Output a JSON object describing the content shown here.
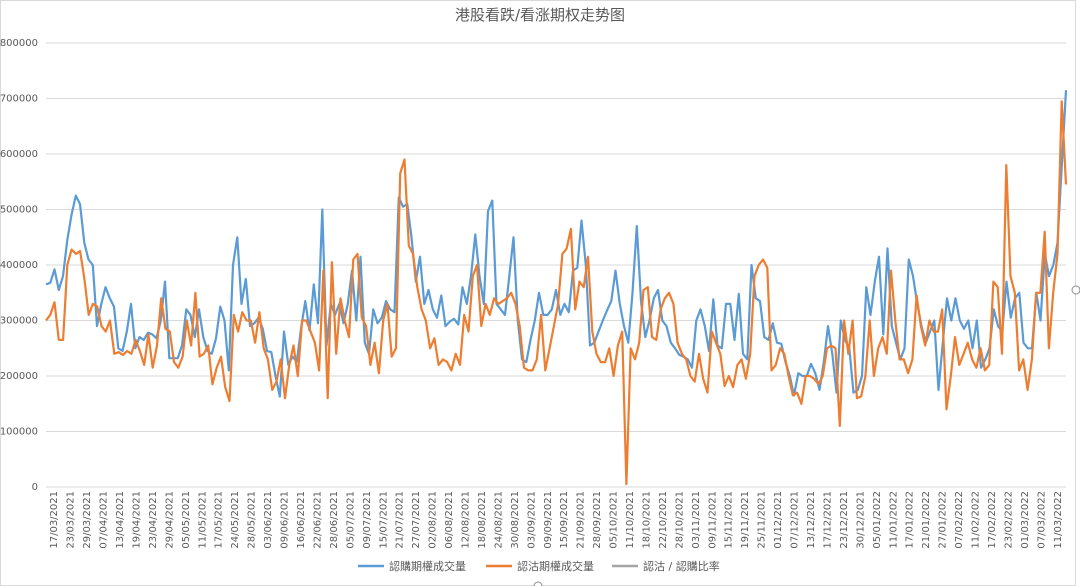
{
  "chart_data": {
    "type": "line",
    "title": "港股看跌/看涨期权走势图",
    "xlabel": "",
    "ylabel": "",
    "ylim": [
      0,
      800000
    ],
    "yticks": [
      "0",
      "100000",
      "200000",
      "300000",
      "400000",
      "500000",
      "600000",
      "700000",
      "800000"
    ],
    "grid": true,
    "legend_position": "bottom",
    "colors": {
      "series1": "#5b9bd5",
      "series2": "#ed7d31",
      "series3": "#a5a5a5"
    },
    "xtick_labels": [
      "17/03/2021",
      "23/03/2021",
      "29/03/2021",
      "07/04/2021",
      "13/04/2021",
      "19/04/2021",
      "23/04/2021",
      "29/04/2021",
      "05/05/2021",
      "11/05/2021",
      "17/05/2021",
      "24/05/2021",
      "28/05/2021",
      "03/06/2021",
      "09/06/2021",
      "16/06/2021",
      "22/06/2021",
      "28/06/2021",
      "05/07/2021",
      "09/07/2021",
      "15/07/2021",
      "21/07/2021",
      "27/07/2021",
      "02/08/2021",
      "06/08/2021",
      "12/08/2021",
      "18/08/2021",
      "24/08/2021",
      "30/08/2021",
      "03/09/2021",
      "09/09/2021",
      "15/09/2021",
      "21/09/2021",
      "28/09/2021",
      "05/10/2021",
      "11/10/2021",
      "18/10/2021",
      "22/10/2021",
      "28/10/2021",
      "03/11/2021",
      "09/11/2021",
      "15/11/2021",
      "19/11/2021",
      "25/11/2021",
      "01/12/2021",
      "07/12/2021",
      "13/12/2021",
      "17/12/2021",
      "23/12/2021",
      "30/12/2021",
      "05/01/2022",
      "11/01/2022",
      "17/01/2022",
      "21/01/2022",
      "27/01/2022",
      "07/02/2022",
      "11/02/2022",
      "17/02/2022",
      "23/02/2022",
      "01/03/2022",
      "07/03/2022",
      "11/03/2022"
    ],
    "series": [
      {
        "name": "認購期權成交量",
        "values": [
          365000,
          368000,
          392000,
          355000,
          380000,
          445000,
          490000,
          525000,
          510000,
          440000,
          410000,
          400000,
          290000,
          330000,
          360000,
          340000,
          325000,
          250000,
          245000,
          280000,
          330000,
          250000,
          270000,
          265000,
          278000,
          275000,
          268000,
          300000,
          370000,
          232000,
          232000,
          232000,
          255000,
          320000,
          310000,
          270000,
          320000,
          270000,
          245000,
          240000,
          268000,
          325000,
          300000,
          210000,
          400000,
          450000,
          330000,
          375000,
          290000,
          295000,
          305000,
          285000,
          245000,
          243000,
          200000,
          163000,
          280000,
          220000,
          235000,
          226000,
          285000,
          335000,
          282000,
          365000,
          295000,
          500000,
          255000,
          330000,
          310000,
          330000,
          295000,
          330000,
          390000,
          300000,
          415000,
          260000,
          240000,
          320000,
          295000,
          305000,
          335000,
          320000,
          315000,
          522000,
          505000,
          510000,
          450000,
          370000,
          415000,
          330000,
          355000,
          320000,
          305000,
          345000,
          290000,
          298000,
          303000,
          293000,
          360000,
          330000,
          380000,
          455000,
          380000,
          330000,
          497000,
          516000,
          330000,
          320000,
          310000,
          380000,
          450000,
          300000,
          230000,
          225000,
          265000,
          300000,
          350000,
          310000,
          310000,
          320000,
          355000,
          310000,
          330000,
          315000,
          390000,
          395000,
          480000,
          400000,
          255000,
          260000,
          280000,
          300000,
          318000,
          335000,
          390000,
          330000,
          290000,
          260000,
          350000,
          470000,
          335000,
          270000,
          300000,
          340000,
          355000,
          300000,
          290000,
          260000,
          250000,
          238000,
          235000,
          230000,
          215000,
          300000,
          320000,
          290000,
          245000,
          338000,
          255000,
          250000,
          330000,
          330000,
          265000,
          348000,
          240000,
          230000,
          400000,
          340000,
          335000,
          270000,
          265000,
          295000,
          260000,
          258000,
          225000,
          200000,
          165000,
          205000,
          200000,
          200000,
          222000,
          205000,
          175000,
          225000,
          290000,
          240000,
          170000,
          300000,
          265000,
          250000,
          170000,
          175000,
          200000,
          360000,
          310000,
          370000,
          415000,
          275000,
          430000,
          290000,
          260000,
          230000,
          250000,
          410000,
          380000,
          330000,
          290000,
          260000,
          280000,
          300000,
          175000,
          260000,
          340000,
          300000,
          340000,
          300000,
          285000,
          300000,
          250000,
          300000,
          215000,
          230000,
          250000,
          320000,
          290000,
          280000,
          370000,
          305000,
          340000,
          350000,
          260000,
          250000,
          250000,
          350000,
          300000,
          420000,
          380000,
          400000,
          440000,
          580000,
          715000
        ]
      },
      {
        "name": "認沽期權成交量",
        "values": [
          300000,
          310000,
          333000,
          265000,
          265000,
          400000,
          428000,
          420000,
          425000,
          375000,
          310000,
          330000,
          325000,
          290000,
          280000,
          300000,
          240000,
          243000,
          238000,
          245000,
          240000,
          265000,
          245000,
          220000,
          275000,
          215000,
          255000,
          340000,
          285000,
          280000,
          225000,
          215000,
          235000,
          300000,
          255000,
          350000,
          235000,
          240000,
          255000,
          185000,
          215000,
          235000,
          180000,
          155000,
          310000,
          280000,
          315000,
          300000,
          300000,
          260000,
          315000,
          250000,
          230000,
          175000,
          190000,
          230000,
          160000,
          220000,
          255000,
          200000,
          300000,
          300000,
          280000,
          260000,
          210000,
          390000,
          160000,
          405000,
          240000,
          340000,
          300000,
          270000,
          410000,
          420000,
          305000,
          290000,
          220000,
          260000,
          205000,
          300000,
          330000,
          235000,
          250000,
          565000,
          590000,
          435000,
          420000,
          360000,
          320000,
          300000,
          250000,
          268000,
          220000,
          230000,
          225000,
          210000,
          240000,
          220000,
          310000,
          280000,
          380000,
          400000,
          290000,
          330000,
          310000,
          340000,
          330000,
          335000,
          340000,
          350000,
          330000,
          290000,
          215000,
          210000,
          210000,
          230000,
          310000,
          210000,
          250000,
          290000,
          330000,
          420000,
          430000,
          465000,
          320000,
          370000,
          360000,
          415000,
          280000,
          240000,
          225000,
          225000,
          250000,
          200000,
          255000,
          280000,
          5000,
          250000,
          230000,
          260000,
          355000,
          360000,
          270000,
          265000,
          320000,
          340000,
          350000,
          330000,
          260000,
          240000,
          230000,
          200000,
          190000,
          240000,
          195000,
          170000,
          280000,
          260000,
          240000,
          182000,
          200000,
          180000,
          220000,
          230000,
          195000,
          240000,
          380000,
          400000,
          410000,
          395000,
          210000,
          220000,
          250000,
          240000,
          200000,
          165000,
          170000,
          150000,
          200000,
          200000,
          195000,
          185000,
          200000,
          250000,
          255000,
          250000,
          110000,
          300000,
          240000,
          300000,
          160000,
          163000,
          200000,
          300000,
          200000,
          250000,
          270000,
          240000,
          390000,
          300000,
          230000,
          230000,
          205000,
          230000,
          345000,
          290000,
          255000,
          300000,
          280000,
          280000,
          320000,
          140000,
          200000,
          270000,
          220000,
          240000,
          260000,
          230000,
          215000,
          250000,
          210000,
          220000,
          370000,
          360000,
          240000,
          580000,
          380000,
          350000,
          210000,
          230000,
          175000,
          230000,
          350000,
          350000,
          460000,
          250000,
          350000,
          420000,
          695000,
          545000
        ]
      },
      {
        "name": "認沽 / 認購比率",
        "values": []
      }
    ]
  }
}
